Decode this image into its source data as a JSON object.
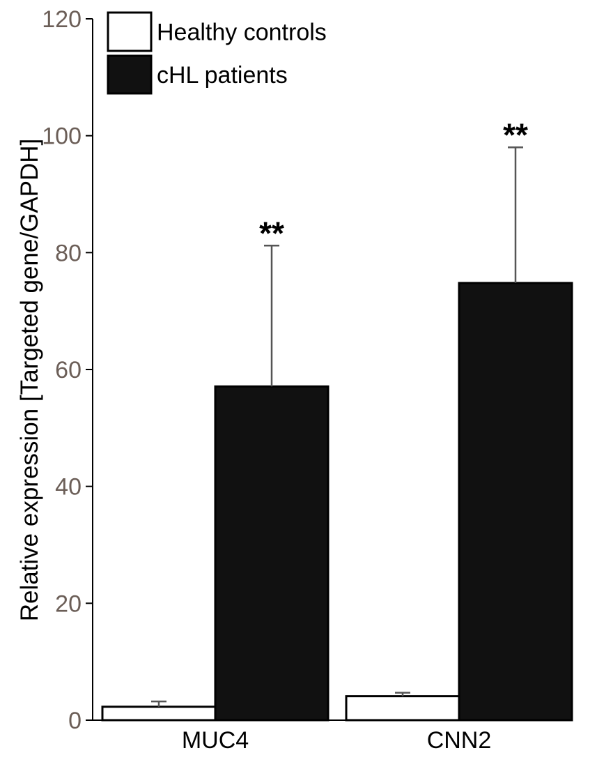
{
  "chart_data": {
    "type": "bar",
    "title": "",
    "xlabel": "",
    "ylabel": "Relative expression [Targeted gene/GAPDH]",
    "ylim": [
      0,
      120
    ],
    "yticks": [
      0,
      20,
      40,
      60,
      80,
      100,
      120
    ],
    "categories": [
      "MUC4",
      "CNN2"
    ],
    "series": [
      {
        "name": "Healthy controls",
        "values": [
          2.3,
          4.1
        ],
        "errors": [
          0.9,
          0.6
        ],
        "fill": "#ffffff",
        "stroke": "#000000"
      },
      {
        "name": "cHL patients",
        "values": [
          57.1,
          74.8
        ],
        "errors": [
          24.1,
          23.2
        ],
        "fill": "#111111",
        "stroke": "#000000"
      }
    ],
    "annotations": [
      "**",
      "**"
    ],
    "legend": "top-left",
    "grid": false,
    "colors": {
      "axis": "#000000",
      "tick_label": "#6b5e57",
      "error_bar": "#555555"
    }
  }
}
